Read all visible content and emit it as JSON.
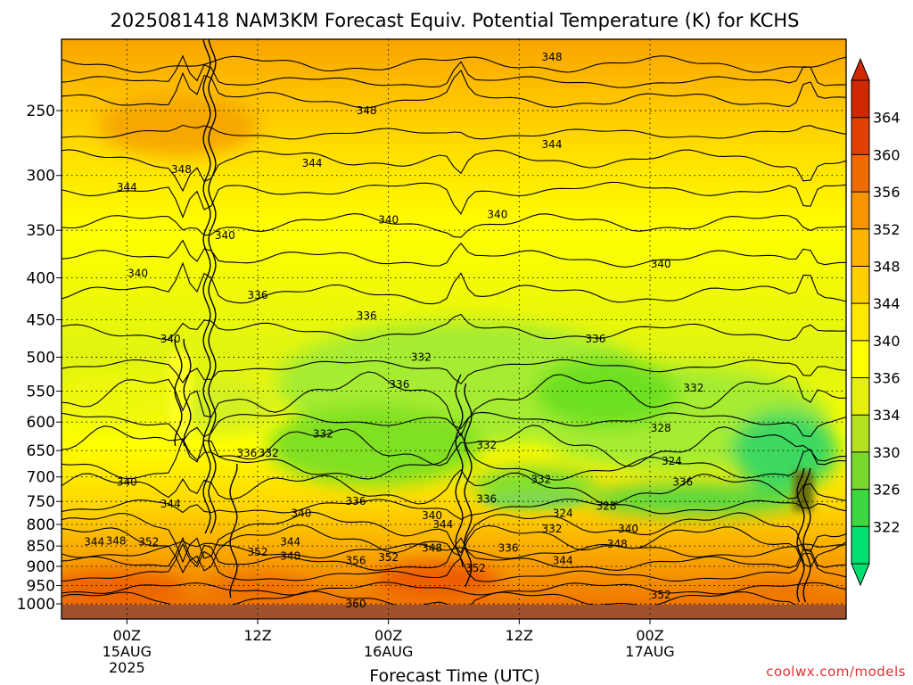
{
  "chart_data": {
    "type": "heatmap",
    "title": "2025081418 NAM3KM Forecast Equiv. Potential Temperature (K) for KCHS",
    "xlabel": "Forecast Time (UTC)",
    "ylabel": "",
    "y_scale": "log-pressure",
    "y_reversed": true,
    "y_ticks": [
      250,
      300,
      350,
      400,
      450,
      500,
      550,
      600,
      650,
      700,
      750,
      800,
      850,
      900,
      950,
      1000
    ],
    "ylim": [
      1013,
      200
    ],
    "x_start": "2025-08-14 18Z",
    "x_end": "2025-08-17 18Z",
    "x_ticks": [
      {
        "label": "00Z",
        "sub1": "15AUG",
        "sub2": "2025",
        "t": "2025-08-15 00Z"
      },
      {
        "label": "12Z",
        "sub1": "",
        "sub2": "",
        "t": "2025-08-15 12Z"
      },
      {
        "label": "00Z",
        "sub1": "16AUG",
        "sub2": "",
        "t": "2025-08-16 00Z"
      },
      {
        "label": "12Z",
        "sub1": "",
        "sub2": "",
        "t": "2025-08-16 12Z"
      },
      {
        "label": "00Z",
        "sub1": "17AUG",
        "sub2": "",
        "t": "2025-08-17 00Z"
      }
    ],
    "grid": true,
    "colorbar": {
      "labels": [
        322,
        326,
        330,
        334,
        336,
        340,
        344,
        348,
        352,
        356,
        360,
        364
      ],
      "colors": [
        "#00e070",
        "#3cd840",
        "#7ad82c",
        "#b4e020",
        "#e6f010",
        "#ffff00",
        "#ffe800",
        "#ffd000",
        "#ffb400",
        "#f89400",
        "#ee6c00",
        "#e04000",
        "#d02800"
      ],
      "position": "right"
    },
    "contour_labels": [
      {
        "text": "348",
        "t": "2025-08-16 15Z",
        "p": 215
      },
      {
        "text": "348",
        "t": "2025-08-15 22Z",
        "p": 250
      },
      {
        "text": "344",
        "t": "2025-08-16 15Z",
        "p": 275
      },
      {
        "text": "344",
        "t": "2025-08-15 17Z",
        "p": 290
      },
      {
        "text": "348",
        "t": "2025-08-15 05Z",
        "p": 295
      },
      {
        "text": "344",
        "t": "2025-08-15 00Z",
        "p": 310
      },
      {
        "text": "340",
        "t": "2025-08-16 00Z",
        "p": 340
      },
      {
        "text": "340",
        "t": "2025-08-16 10Z",
        "p": 335
      },
      {
        "text": "340",
        "t": "2025-08-15 09Z",
        "p": 355
      },
      {
        "text": "340",
        "t": "2025-08-17 01Z",
        "p": 385
      },
      {
        "text": "340",
        "t": "2025-08-15 01Z",
        "p": 395
      },
      {
        "text": "336",
        "t": "2025-08-15 12Z",
        "p": 420
      },
      {
        "text": "336",
        "t": "2025-08-15 22Z",
        "p": 445
      },
      {
        "text": "340",
        "t": "2025-08-15 04Z",
        "p": 475
      },
      {
        "text": "336",
        "t": "2025-08-16 19Z",
        "p": 475
      },
      {
        "text": "332",
        "t": "2025-08-16 03Z",
        "p": 500
      },
      {
        "text": "336",
        "t": "2025-08-16 01Z",
        "p": 540
      },
      {
        "text": "332",
        "t": "2025-08-17 04Z",
        "p": 545
      },
      {
        "text": "332",
        "t": "2025-08-15 18Z",
        "p": 620
      },
      {
        "text": "332",
        "t": "2025-08-16 09Z",
        "p": 640
      },
      {
        "text": "328",
        "t": "2025-08-17 01Z",
        "p": 610
      },
      {
        "text": "336",
        "t": "2025-08-15 11Z",
        "p": 655
      },
      {
        "text": "332",
        "t": "2025-08-15 13Z",
        "p": 655
      },
      {
        "text": "324",
        "t": "2025-08-17 02Z",
        "p": 670
      },
      {
        "text": "332",
        "t": "2025-08-16 14Z",
        "p": 705
      },
      {
        "text": "340",
        "t": "2025-08-15 00Z",
        "p": 710
      },
      {
        "text": "336",
        "t": "2025-08-17 03Z",
        "p": 710
      },
      {
        "text": "336",
        "t": "2025-08-16 09Z",
        "p": 745
      },
      {
        "text": "336",
        "t": "2025-08-15 21Z",
        "p": 750
      },
      {
        "text": "344",
        "t": "2025-08-15 04Z",
        "p": 755
      },
      {
        "text": "328",
        "t": "2025-08-16 20Z",
        "p": 760
      },
      {
        "text": "324",
        "t": "2025-08-16 16Z",
        "p": 775
      },
      {
        "text": "340",
        "t": "2025-08-15 16Z",
        "p": 775
      },
      {
        "text": "340",
        "t": "2025-08-16 04Z",
        "p": 780
      },
      {
        "text": "344",
        "t": "2025-08-16 05Z",
        "p": 800
      },
      {
        "text": "332",
        "t": "2025-08-16 15Z",
        "p": 810
      },
      {
        "text": "340",
        "t": "2025-08-16 22Z",
        "p": 810
      },
      {
        "text": "344",
        "t": "2025-08-14 21Z",
        "p": 840
      },
      {
        "text": "348",
        "t": "2025-08-14 23Z",
        "p": 838
      },
      {
        "text": "352",
        "t": "2025-08-15 02Z",
        "p": 840
      },
      {
        "text": "344",
        "t": "2025-08-15 15Z",
        "p": 840
      },
      {
        "text": "348",
        "t": "2025-08-16 21Z",
        "p": 845
      },
      {
        "text": "348",
        "t": "2025-08-16 04Z",
        "p": 855
      },
      {
        "text": "336",
        "t": "2025-08-16 11Z",
        "p": 855
      },
      {
        "text": "352",
        "t": "2025-08-15 12Z",
        "p": 865
      },
      {
        "text": "348",
        "t": "2025-08-15 15Z",
        "p": 875
      },
      {
        "text": "352",
        "t": "2025-08-16 00Z",
        "p": 878
      },
      {
        "text": "356",
        "t": "2025-08-15 21Z",
        "p": 885
      },
      {
        "text": "344",
        "t": "2025-08-16 16Z",
        "p": 885
      },
      {
        "text": "352",
        "t": "2025-08-16 08Z",
        "p": 905
      },
      {
        "text": "352",
        "t": "2025-08-17 01Z",
        "p": 975
      },
      {
        "text": "360",
        "t": "2025-08-15 21Z",
        "p": 1000
      }
    ]
  },
  "credit": "coolwx.com/models"
}
